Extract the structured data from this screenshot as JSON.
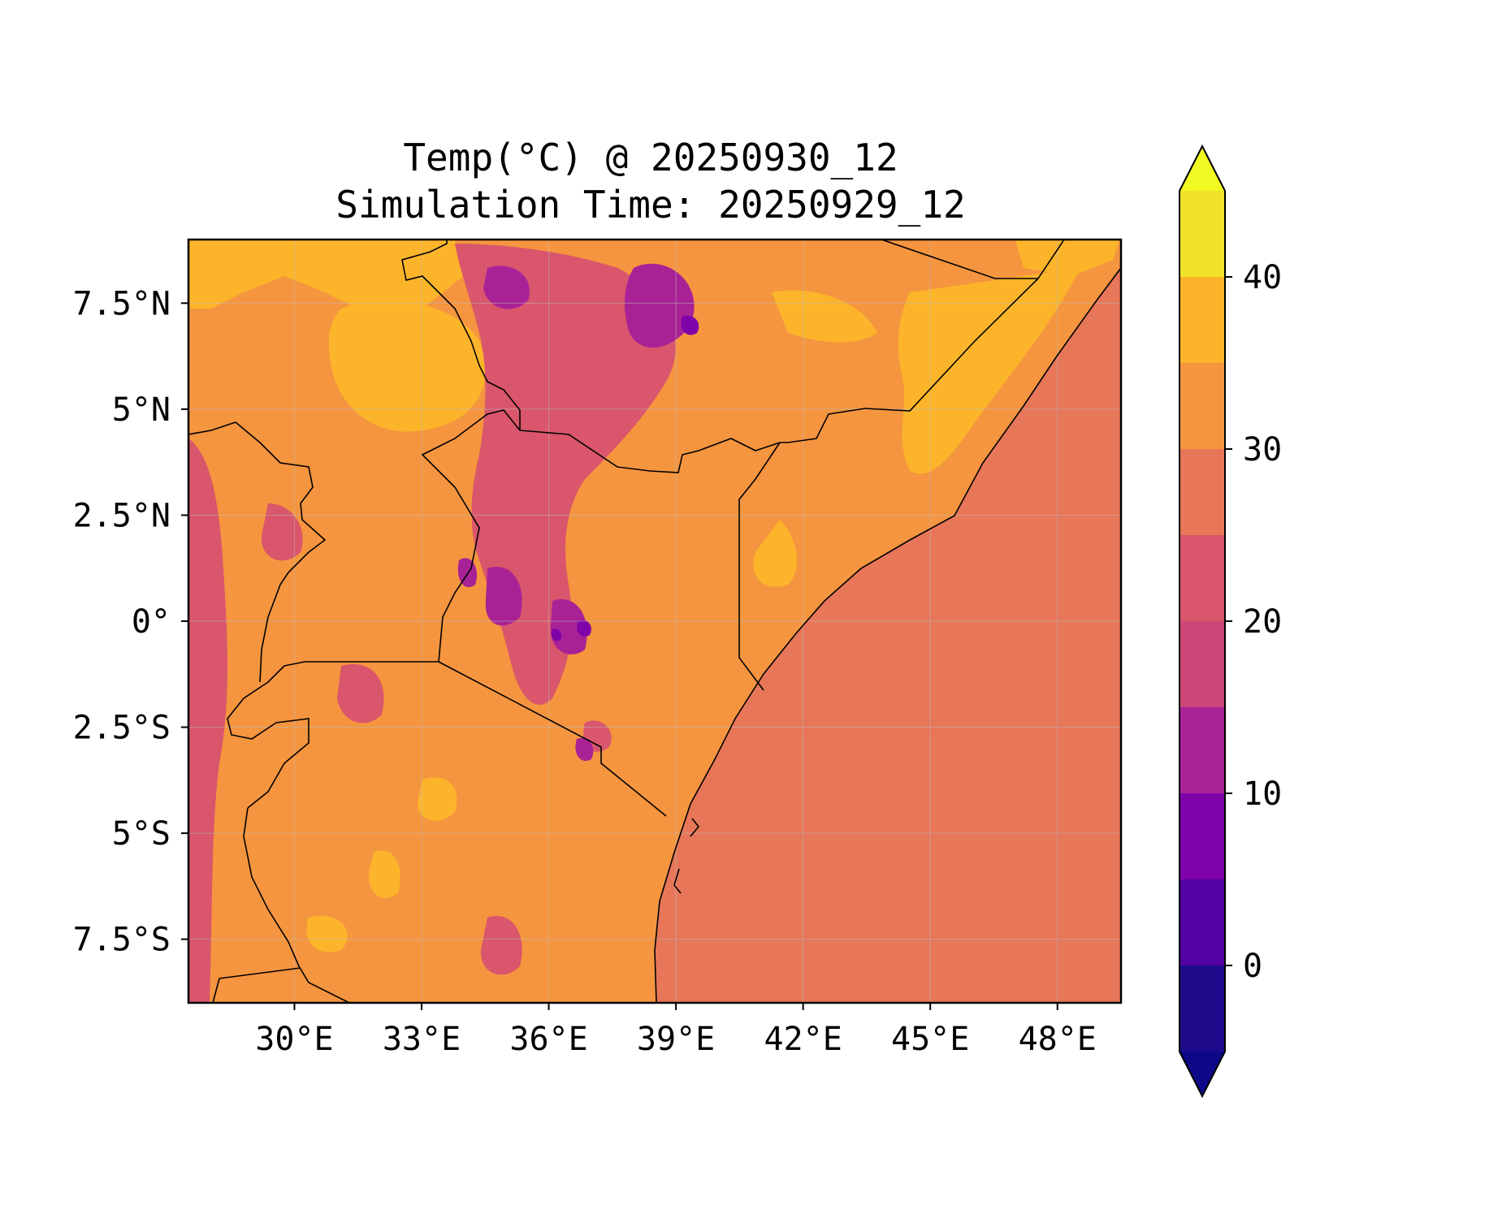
{
  "title_line1": "Temp(°C) @ 20250930_12",
  "title_line2": "Simulation Time: 20250929_12",
  "map": {
    "lon_range": [
      27.5,
      49.5
    ],
    "lat_range": [
      -9,
      9
    ],
    "lon_ticks": [
      {
        "value": 30,
        "label": "30°E"
      },
      {
        "value": 33,
        "label": "33°E"
      },
      {
        "value": 36,
        "label": "36°E"
      },
      {
        "value": 39,
        "label": "39°E"
      },
      {
        "value": 42,
        "label": "42°E"
      },
      {
        "value": 45,
        "label": "45°E"
      },
      {
        "value": 48,
        "label": "48°E"
      }
    ],
    "lat_ticks": [
      {
        "value": 7.5,
        "label": "7.5°N"
      },
      {
        "value": 5,
        "label": "5°N"
      },
      {
        "value": 2.5,
        "label": "2.5°N"
      },
      {
        "value": 0,
        "label": "0°"
      },
      {
        "value": -2.5,
        "label": "2.5°S"
      },
      {
        "value": -5,
        "label": "5°S"
      },
      {
        "value": -7.5,
        "label": "7.5°S"
      }
    ],
    "ocean_color": "#e87659",
    "land_color": "#f5953f"
  },
  "colorbar": {
    "ticks": [
      {
        "value": 0,
        "label": "0"
      },
      {
        "value": 10,
        "label": "10"
      },
      {
        "value": 20,
        "label": "20"
      },
      {
        "value": 30,
        "label": "30"
      },
      {
        "value": 40,
        "label": "40"
      }
    ],
    "levels": [
      {
        "from": -5,
        "to": 0,
        "color": "#1f0a8c"
      },
      {
        "from": 0,
        "to": 5,
        "color": "#5302a3"
      },
      {
        "from": 5,
        "to": 10,
        "color": "#7e03a8"
      },
      {
        "from": 10,
        "to": 15,
        "color": "#a82296"
      },
      {
        "from": 15,
        "to": 20,
        "color": "#cb4778"
      },
      {
        "from": 20,
        "to": 25,
        "color": "#d9566c"
      },
      {
        "from": 25,
        "to": 30,
        "color": "#e87659"
      },
      {
        "from": 30,
        "to": 35,
        "color": "#f5953f"
      },
      {
        "from": 35,
        "to": 40,
        "color": "#fcb52a"
      },
      {
        "from": 40,
        "to": 45,
        "color": "#f0e22a"
      }
    ],
    "under_color": "#0d0887",
    "over_color": "#f0f921"
  }
}
